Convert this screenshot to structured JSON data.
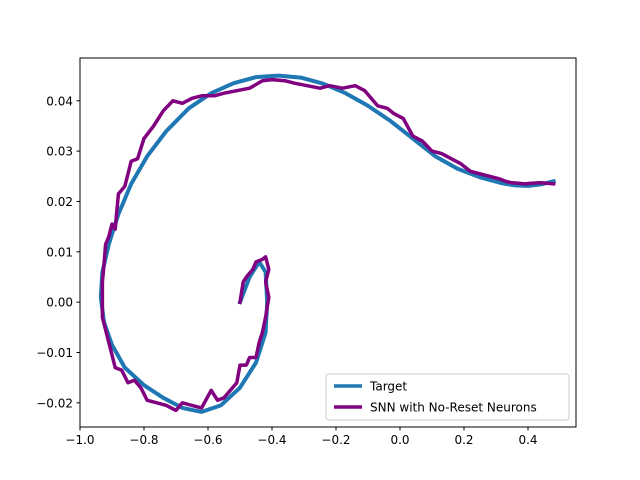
{
  "chart_data": {
    "type": "line",
    "title": "",
    "xlabel": "",
    "ylabel": "",
    "xlim": [
      -1.0,
      0.55
    ],
    "ylim": [
      -0.0248,
      0.0485
    ],
    "grid": false,
    "legend_position": "lower-right",
    "xticks": [
      -1.0,
      -0.8,
      -0.6,
      -0.4,
      -0.2,
      0.0,
      0.2,
      0.4
    ],
    "xtick_labels": [
      "−1.0",
      "−0.8",
      "−0.6",
      "−0.4",
      "−0.2",
      "0.0",
      "0.2",
      "0.4"
    ],
    "yticks": [
      -0.02,
      -0.01,
      0.0,
      0.01,
      0.02,
      0.03,
      0.04
    ],
    "ytick_labels": [
      "−0.02",
      "−0.01",
      "0.00",
      "0.01",
      "0.02",
      "0.03",
      "0.04"
    ],
    "series": [
      {
        "name": "Target",
        "color": "#1f77b4",
        "x": [
          -0.5,
          -0.47,
          -0.44,
          -0.42,
          -0.415,
          -0.42,
          -0.45,
          -0.5,
          -0.56,
          -0.62,
          -0.68,
          -0.74,
          -0.8,
          -0.86,
          -0.9,
          -0.925,
          -0.935,
          -0.93,
          -0.91,
          -0.88,
          -0.84,
          -0.79,
          -0.73,
          -0.66,
          -0.59,
          -0.52,
          -0.45,
          -0.38,
          -0.31,
          -0.24,
          -0.17,
          -0.1,
          -0.03,
          0.04,
          0.11,
          0.18,
          0.25,
          0.32,
          0.36,
          0.4,
          0.44,
          0.48
        ],
        "y": [
          0.0,
          0.005,
          0.008,
          0.006,
          0.0,
          -0.006,
          -0.012,
          -0.017,
          -0.0205,
          -0.0218,
          -0.021,
          -0.019,
          -0.0165,
          -0.013,
          -0.0085,
          -0.004,
          0.001,
          0.006,
          0.0115,
          0.0175,
          0.0235,
          0.029,
          0.034,
          0.0385,
          0.0415,
          0.0435,
          0.0447,
          0.045,
          0.0446,
          0.0434,
          0.0415,
          0.039,
          0.036,
          0.0325,
          0.029,
          0.0265,
          0.0248,
          0.0236,
          0.0232,
          0.0231,
          0.0234,
          0.024
        ]
      },
      {
        "name": "SNN with No-Reset Neurons",
        "color": "#800080",
        "x": [
          -0.5,
          -0.49,
          -0.48,
          -0.46,
          -0.45,
          -0.43,
          -0.42,
          -0.41,
          -0.42,
          -0.41,
          -0.42,
          -0.43,
          -0.44,
          -0.45,
          -0.47,
          -0.48,
          -0.5,
          -0.51,
          -0.53,
          -0.55,
          -0.57,
          -0.59,
          -0.62,
          -0.65,
          -0.68,
          -0.7,
          -0.73,
          -0.76,
          -0.79,
          -0.81,
          -0.83,
          -0.85,
          -0.87,
          -0.89,
          -0.9,
          -0.91,
          -0.92,
          -0.93,
          -0.93,
          -0.925,
          -0.92,
          -0.91,
          -0.9,
          -0.89,
          -0.88,
          -0.86,
          -0.84,
          -0.82,
          -0.8,
          -0.77,
          -0.74,
          -0.71,
          -0.68,
          -0.65,
          -0.62,
          -0.58,
          -0.55,
          -0.51,
          -0.47,
          -0.43,
          -0.4,
          -0.36,
          -0.33,
          -0.29,
          -0.25,
          -0.22,
          -0.18,
          -0.14,
          -0.11,
          -0.07,
          -0.04,
          -0.02,
          0.01,
          0.04,
          0.07,
          0.1,
          0.13,
          0.16,
          0.19,
          0.22,
          0.25,
          0.28,
          0.31,
          0.33,
          0.35,
          0.37,
          0.39,
          0.41,
          0.44,
          0.46,
          0.48
        ],
        "y": [
          0.0,
          0.004,
          0.005,
          0.0065,
          0.008,
          0.0085,
          0.009,
          0.0065,
          0.004,
          0.001,
          -0.003,
          -0.006,
          -0.008,
          -0.011,
          -0.011,
          -0.0125,
          -0.0125,
          -0.016,
          -0.0175,
          -0.019,
          -0.0195,
          -0.0175,
          -0.021,
          -0.0205,
          -0.02,
          -0.0215,
          -0.0205,
          -0.02,
          -0.0195,
          -0.017,
          -0.0155,
          -0.016,
          -0.0135,
          -0.013,
          -0.0105,
          -0.008,
          -0.0055,
          -0.003,
          0.004,
          0.0075,
          0.0115,
          0.013,
          0.0155,
          0.0145,
          0.0215,
          0.023,
          0.028,
          0.0285,
          0.0325,
          0.035,
          0.038,
          0.04,
          0.0395,
          0.0405,
          0.041,
          0.041,
          0.0415,
          0.042,
          0.0425,
          0.044,
          0.0442,
          0.044,
          0.0435,
          0.043,
          0.0425,
          0.043,
          0.0425,
          0.043,
          0.042,
          0.039,
          0.0385,
          0.0375,
          0.0365,
          0.033,
          0.032,
          0.03,
          0.0295,
          0.0285,
          0.0275,
          0.026,
          0.0255,
          0.025,
          0.0245,
          0.024,
          0.0237,
          0.0236,
          0.0235,
          0.0236,
          0.0237,
          0.0236,
          0.0235
        ]
      }
    ]
  }
}
